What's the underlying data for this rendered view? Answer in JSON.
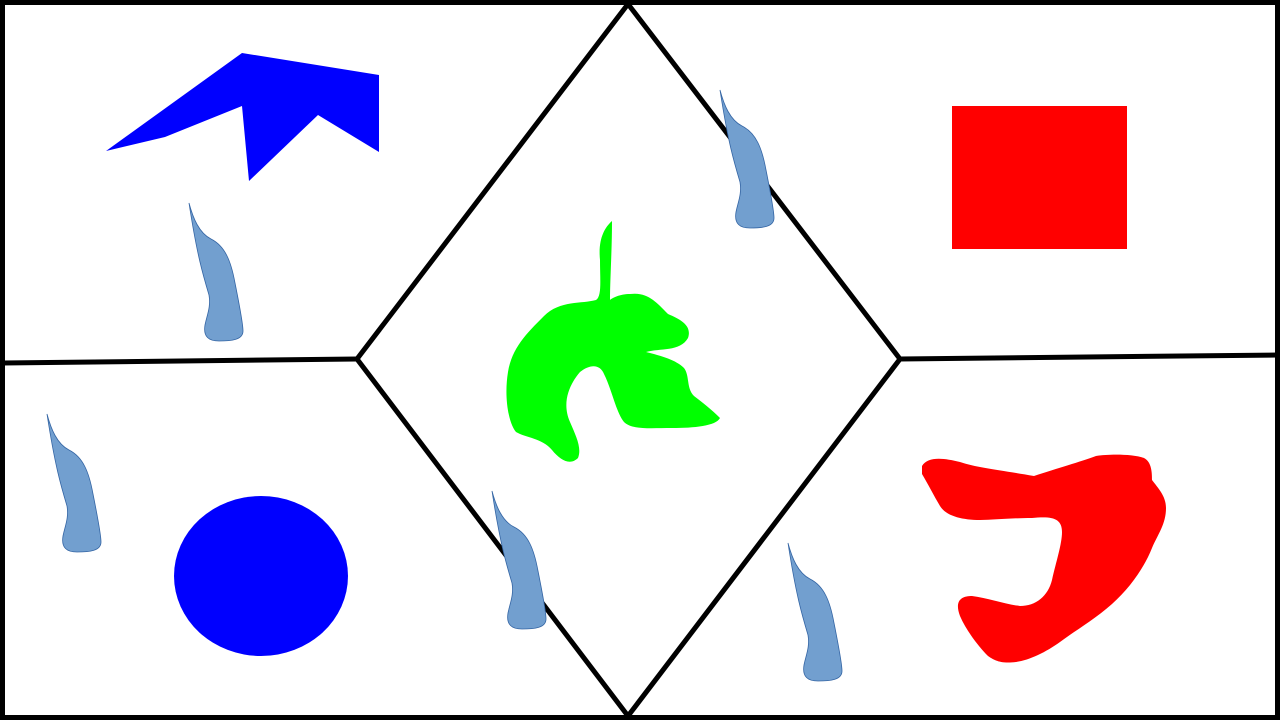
{
  "colors": {
    "background": "#ffffff",
    "lines": "#000000",
    "blue": "#0000ff",
    "red": "#ff0000",
    "green": "#00ff00",
    "droplet": "#729fcf",
    "droplet_stroke": "#3465a4"
  },
  "regions": [
    {
      "name": "top-left",
      "shape": "blue-chevron-polygon"
    },
    {
      "name": "top-right",
      "shape": "red-square"
    },
    {
      "name": "center",
      "shape": "green-blob"
    },
    {
      "name": "bottom-left",
      "shape": "blue-circle"
    },
    {
      "name": "bottom-right",
      "shape": "red-hook-blob"
    }
  ],
  "droplet_count": 5
}
